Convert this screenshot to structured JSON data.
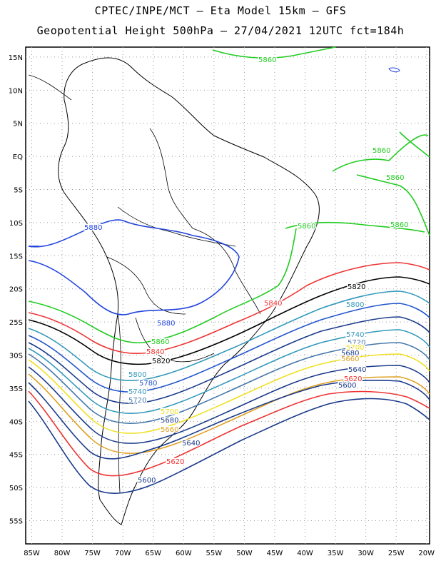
{
  "header": {
    "line1": "CPTEC/INPE/MCT –  Eta Model 15km – GFS",
    "line2": "Geopotential Height 500hPa – 27/04/2021 12UTC fct=184h"
  },
  "axes": {
    "lat_labels": [
      "15N",
      "10N",
      "5N",
      "EQ",
      "5S",
      "10S",
      "15S",
      "20S",
      "25S",
      "30S",
      "35S",
      "40S",
      "45S",
      "50S",
      "55S"
    ],
    "lat_values": [
      15,
      10,
      5,
      0,
      -5,
      -10,
      -15,
      -20,
      -25,
      -30,
      -35,
      -40,
      -45,
      -50,
      -55
    ],
    "lon_labels": [
      "85W",
      "80W",
      "75W",
      "70W",
      "65W",
      "60W",
      "55W",
      "50W",
      "45W",
      "40W",
      "35W",
      "30W",
      "25W",
      "20W"
    ],
    "lon_values": [
      -85,
      -80,
      -75,
      -70,
      -65,
      -60,
      -55,
      -50,
      -45,
      -40,
      -35,
      -30,
      -25,
      -20
    ]
  },
  "contours": [
    {
      "value": "5860",
      "color": "#22cc22",
      "labels": [
        "5860",
        "5860",
        "5860",
        "5860",
        "5860"
      ]
    },
    {
      "value": "5880",
      "color": "#2244dd",
      "labels": [
        "5880",
        "5880"
      ]
    },
    {
      "value": "5860",
      "color": "#22cc22",
      "labels": [
        "5860"
      ]
    },
    {
      "value": "5840",
      "color": "#ee3333",
      "labels": [
        "5840",
        "5840"
      ]
    },
    {
      "value": "5820",
      "color": "#000000",
      "labels": [
        "5820",
        "5820"
      ]
    },
    {
      "value": "5800",
      "color": "#3399bb",
      "labels": [
        "5800",
        "5800"
      ]
    },
    {
      "value": "5780",
      "color": "#2255cc",
      "labels": [
        "5780"
      ]
    },
    {
      "value": "5760",
      "color": "#1a3a8a",
      "labels": []
    },
    {
      "value": "5740",
      "color": "#3399bb",
      "labels": [
        "5740",
        "5740"
      ]
    },
    {
      "value": "5720",
      "color": "#4477aa",
      "labels": [
        "5720",
        "5720"
      ]
    },
    {
      "value": "5700",
      "color": "#f0e020",
      "labels": [
        "5700",
        "5700"
      ]
    },
    {
      "value": "5680",
      "color": "#1a3a8a",
      "labels": [
        "5680",
        "5680"
      ]
    },
    {
      "value": "5660",
      "color": "#e0a020",
      "labels": [
        "5660",
        "5660"
      ]
    },
    {
      "value": "5640",
      "color": "#1a3a8a",
      "labels": [
        "5640",
        "5640"
      ]
    },
    {
      "value": "5620",
      "color": "#ee3333",
      "labels": [
        "5620",
        "5620"
      ]
    },
    {
      "value": "5600",
      "color": "#1a3a8a",
      "labels": [
        "5600",
        "5600"
      ]
    }
  ]
}
